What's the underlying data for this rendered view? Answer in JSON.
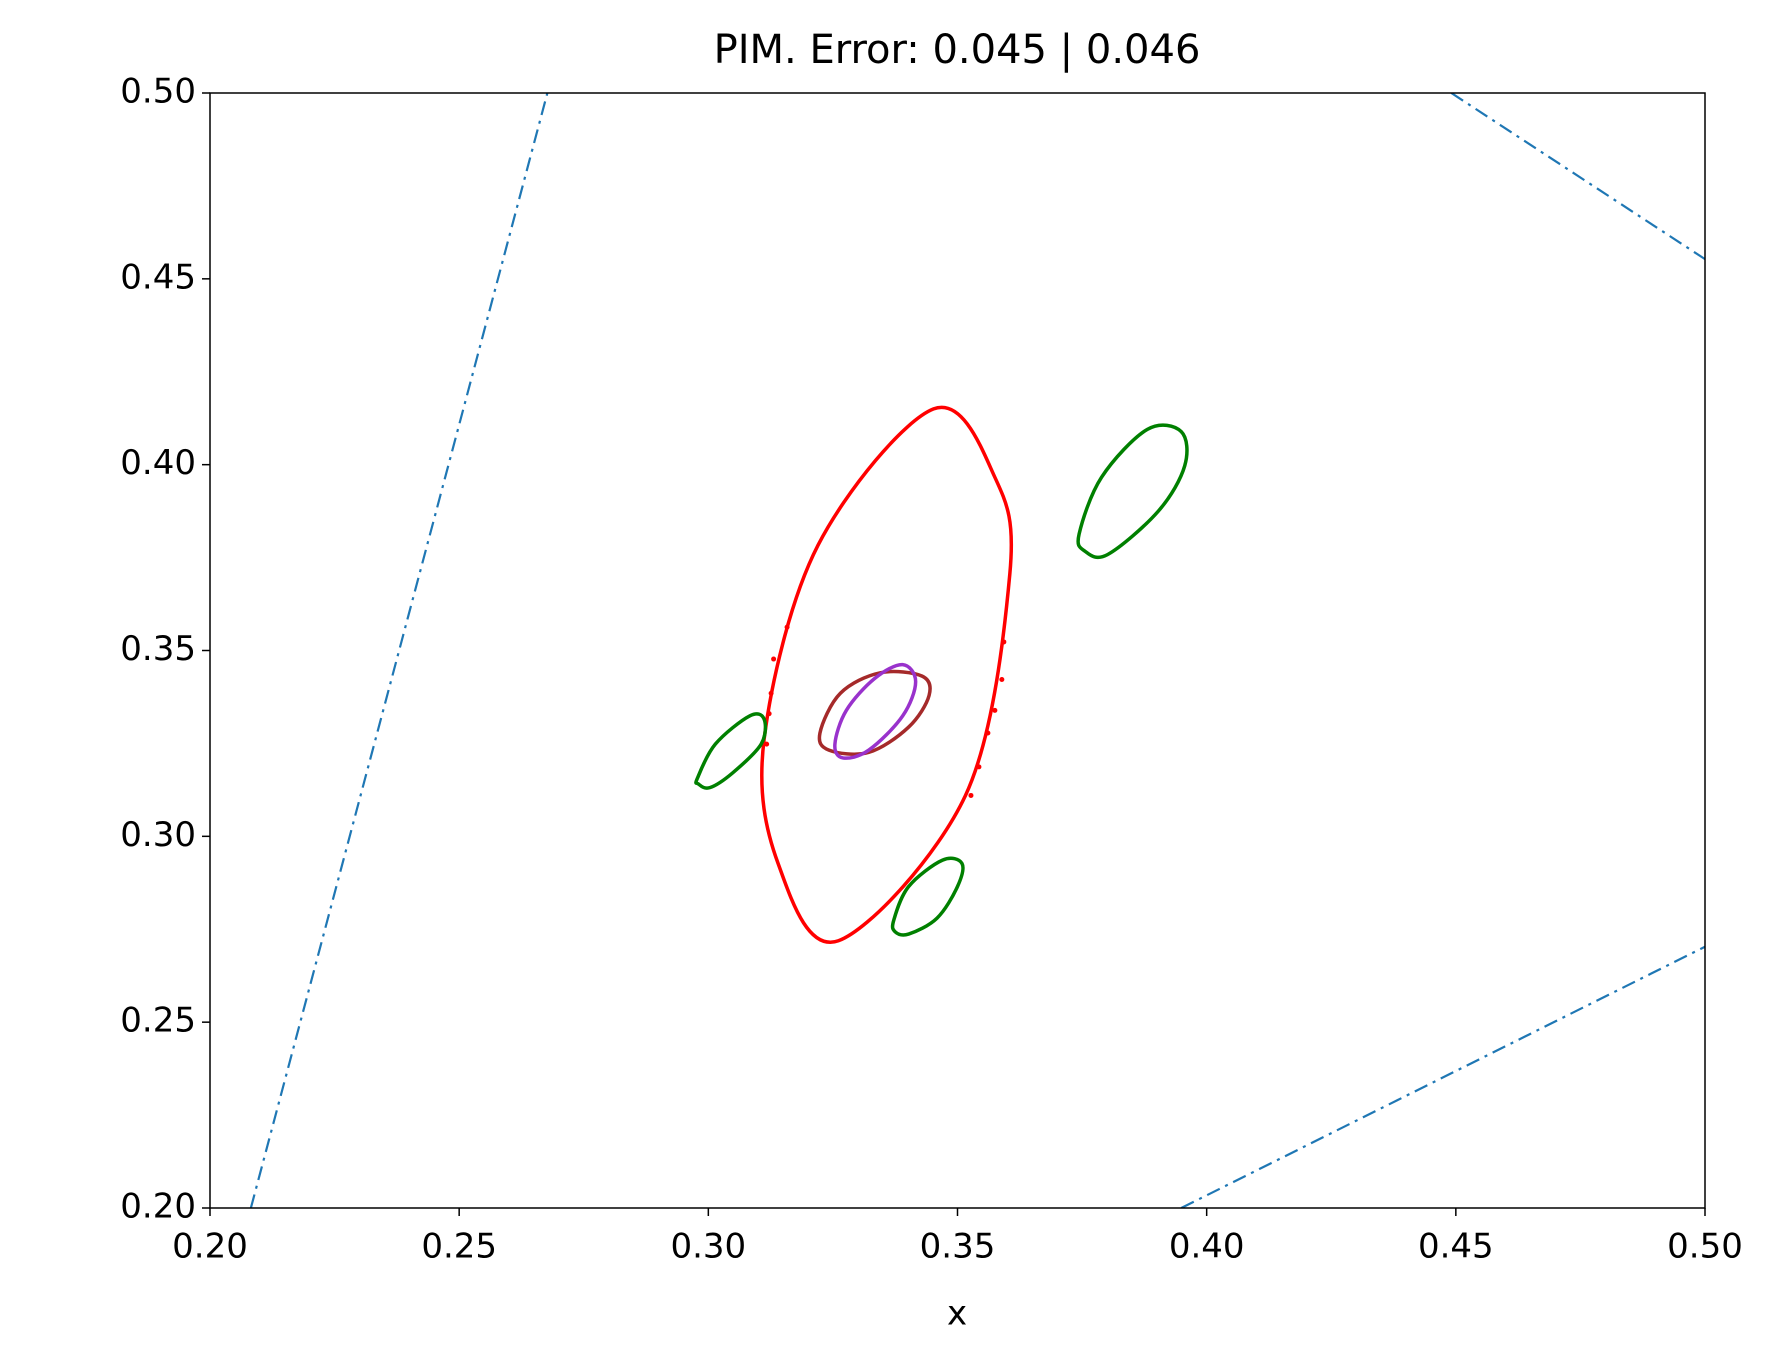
{
  "chart_data": {
    "type": "line",
    "title": "PIM. Error: 0.045 | 0.046",
    "xlabel": "x",
    "xlim": [
      0.2,
      0.5
    ],
    "ylim": [
      0.2,
      0.5
    ],
    "xticks": [
      {
        "value": 0.2,
        "label": "0.20"
      },
      {
        "value": 0.25,
        "label": "0.25"
      },
      {
        "value": 0.3,
        "label": "0.30"
      },
      {
        "value": 0.35,
        "label": "0.35"
      },
      {
        "value": 0.4,
        "label": "0.40"
      },
      {
        "value": 0.45,
        "label": "0.45"
      },
      {
        "value": 0.5,
        "label": "0.50"
      }
    ],
    "yticks": [
      {
        "value": 0.2,
        "label": "0.20"
      },
      {
        "value": 0.25,
        "label": "0.25"
      },
      {
        "value": 0.3,
        "label": "0.30"
      },
      {
        "value": 0.35,
        "label": "0.35"
      },
      {
        "value": 0.4,
        "label": "0.40"
      },
      {
        "value": 0.45,
        "label": "0.45"
      },
      {
        "value": 0.5,
        "label": "0.50"
      }
    ],
    "grid": false,
    "series": [
      {
        "color": "#1f77b4",
        "style": "dashdot",
        "x": [
          0.2082,
          0.2677
        ],
        "y": [
          0.2,
          0.5
        ]
      },
      {
        "color": "#1f77b4",
        "style": "dashdot",
        "x": [
          0.4491,
          0.5
        ],
        "y": [
          0.5,
          0.4553
        ]
      },
      {
        "color": "#1f77b4",
        "style": "dashdot",
        "x": [
          0.3949,
          0.5
        ],
        "y": [
          0.2,
          0.2703
        ]
      },
      {
        "color": "#ff0000",
        "closed": true,
        "x": [
          0.3452,
          0.3575,
          0.3605,
          0.3516,
          0.3261,
          0.314,
          0.3112,
          0.322
        ],
        "y": [
          0.415,
          0.3966,
          0.3706,
          0.311,
          0.2719,
          0.2927,
          0.3262,
          0.3783
        ]
      },
      {
        "color": "#a52a2a",
        "closed": true,
        "x": [
          0.3224,
          0.3265,
          0.3345,
          0.3429,
          0.3443,
          0.3402,
          0.3322,
          0.3242
        ],
        "y": [
          0.3278,
          0.3385,
          0.344,
          0.3431,
          0.3379,
          0.3294,
          0.3226,
          0.3232
        ]
      },
      {
        "color": "#9932cc",
        "closed": true,
        "x": [
          0.3254,
          0.3277,
          0.3334,
          0.339,
          0.3416,
          0.339,
          0.3322,
          0.327
        ],
        "y": [
          0.3248,
          0.3339,
          0.3425,
          0.3462,
          0.3416,
          0.3324,
          0.3232,
          0.3211
        ]
      },
      {
        "color": "#008000",
        "closed": true,
        "x": [
          0.3744,
          0.3789,
          0.3881,
          0.3949,
          0.3956,
          0.3903,
          0.3801,
          0.3755
        ],
        "y": [
          0.3813,
          0.3966,
          0.4095,
          0.4089,
          0.3997,
          0.3875,
          0.3758,
          0.3768
        ]
      },
      {
        "color": "#008000",
        "closed": true,
        "x": [
          0.2978,
          0.3014,
          0.3083,
          0.3112,
          0.3106,
          0.3049,
          0.3003,
          0.298
        ],
        "y": [
          0.3156,
          0.3248,
          0.3324,
          0.3315,
          0.3248,
          0.3171,
          0.3131,
          0.3141
        ]
      },
      {
        "color": "#008000",
        "closed": true,
        "x": [
          0.3372,
          0.3402,
          0.347,
          0.3509,
          0.35,
          0.3459,
          0.3402,
          0.3375
        ],
        "y": [
          0.2774,
          0.2865,
          0.2936,
          0.2927,
          0.2865,
          0.278,
          0.2737,
          0.2743
        ]
      },
      {
        "color": "#ff0000",
        "style": "dots",
        "x": [
          0.3131,
          0.3158,
          0.3126,
          0.3122,
          0.3117,
          0.3527,
          0.3543,
          0.3561,
          0.3575,
          0.3589,
          0.3593
        ],
        "y": [
          0.3477,
          0.3563,
          0.3385,
          0.333,
          0.3248,
          0.311,
          0.3187,
          0.3278,
          0.3339,
          0.3422,
          0.3523
        ]
      }
    ]
  }
}
